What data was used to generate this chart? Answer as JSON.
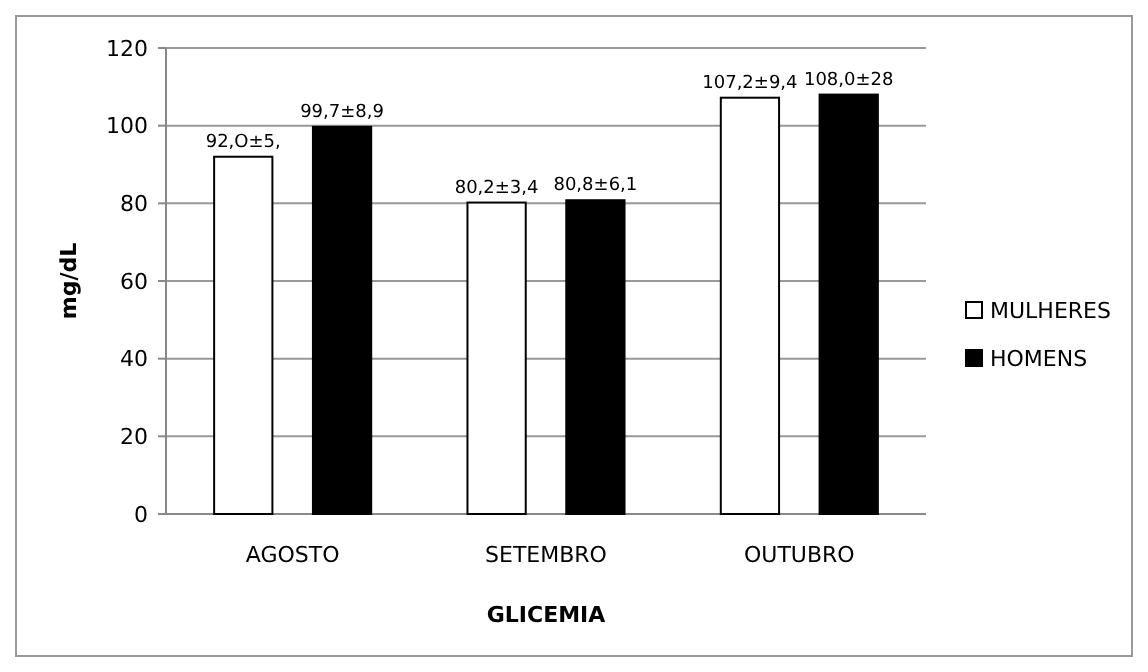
{
  "chart_data": {
    "type": "bar",
    "xlabel": "GLICEMIA",
    "ylabel": "mg/dL",
    "categories": [
      "AGOSTO",
      "SETEMBRO",
      "OUTUBRO"
    ],
    "series": [
      {
        "name": "MULHERES",
        "color": "#ffffff",
        "values": [
          92.0,
          80.2,
          107.2
        ],
        "value_labels": [
          "92,O±5,",
          "80,2±3,4",
          "107,2±9,4"
        ]
      },
      {
        "name": "HOMENS",
        "color": "#000000",
        "values": [
          99.7,
          80.8,
          108.0
        ],
        "value_labels": [
          "99,7±8,9",
          "80,8±6,1",
          "108,0±28"
        ]
      }
    ],
    "ylim": [
      0,
      120
    ],
    "yticks": [
      0,
      20,
      40,
      60,
      80,
      100,
      120
    ],
    "grid": "y",
    "legend": "right"
  }
}
